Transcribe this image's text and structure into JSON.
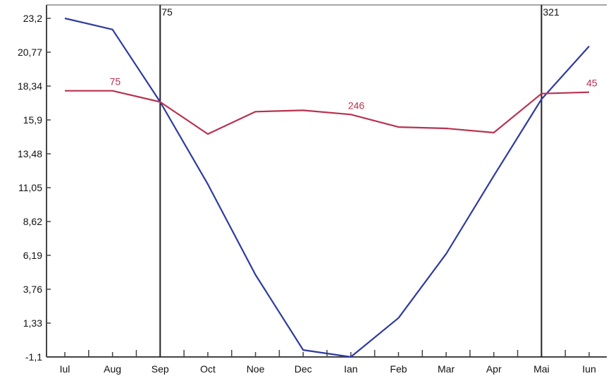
{
  "chart_data": {
    "type": "line",
    "categories": [
      "Iul",
      "Aug",
      "Sep",
      "Oct",
      "Noe",
      "Dec",
      "Ian",
      "Feb",
      "Mar",
      "Apr",
      "Mai",
      "Iun"
    ],
    "y_ticks": [
      "23,2",
      "20,77",
      "18,34",
      "15,9",
      "13,48",
      "11,05",
      "8,62",
      "6,19",
      "3,76",
      "1,33",
      "-1,1"
    ],
    "ylim": [
      -1.1,
      23.2
    ],
    "grid": false,
    "series": [
      {
        "color": "#2e3a9f",
        "values": [
          23.2,
          22.4,
          17.2,
          11.3,
          4.8,
          -0.6,
          -1.1,
          1.7,
          6.3,
          11.9,
          17.4,
          21.2
        ]
      },
      {
        "color": "#b83250",
        "values": [
          18.0,
          18.0,
          17.2,
          14.9,
          16.5,
          16.6,
          16.3,
          15.4,
          15.3,
          15.0,
          17.8,
          17.9
        ]
      }
    ],
    "vertical_markers": [
      {
        "category_index": 2,
        "label": "75"
      },
      {
        "category_index": 10,
        "label": "321"
      }
    ],
    "annotations": [
      {
        "category_index": 1,
        "series_index": 1,
        "text": "75"
      },
      {
        "category_index": 6,
        "series_index": 1,
        "text": "246"
      },
      {
        "category_index": 11,
        "series_index": 1,
        "text": "45"
      }
    ],
    "axis_color": "#444444",
    "marker_color": "#222222"
  }
}
